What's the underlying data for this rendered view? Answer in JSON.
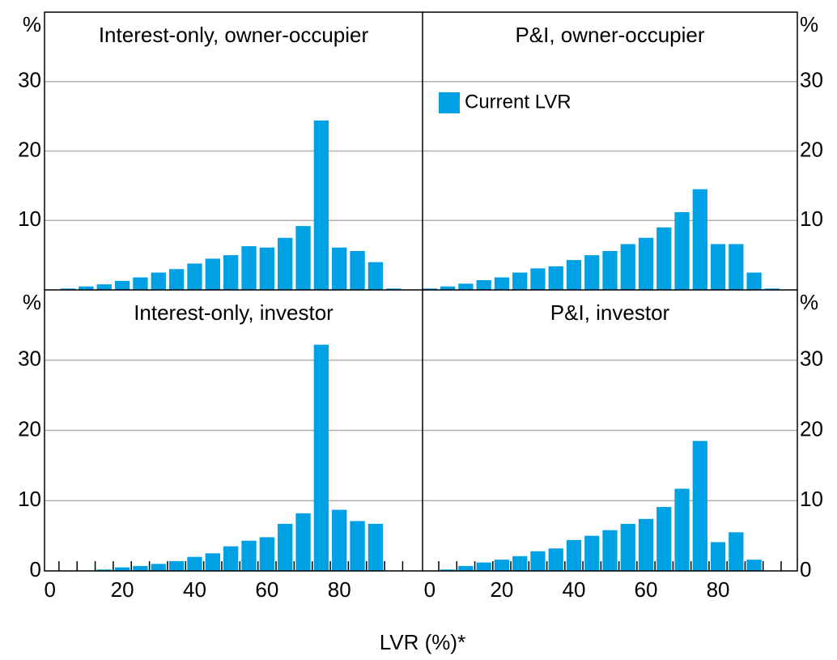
{
  "chart_data": [
    {
      "type": "histogram",
      "title": "Interest-only, owner-occupier",
      "ylabel": "%",
      "yaxis_side": "left",
      "bins": [
        -2.5,
        2.5,
        7.5,
        12.5,
        17.5,
        22.5,
        27.5,
        32.5,
        37.5,
        42.5,
        47.5,
        52.5,
        57.5,
        62.5,
        67.5,
        72.5,
        77.5,
        82.5,
        87.5,
        92.5,
        97.5
      ],
      "values": [
        0,
        0.2,
        0.5,
        0.8,
        1.3,
        1.8,
        2.5,
        3.0,
        3.8,
        4.5,
        5.0,
        6.3,
        6.1,
        7.5,
        9.2,
        24.4,
        6.1,
        5.6,
        4.0,
        0.2
      ],
      "color": "#00a1e4",
      "xlim": [
        -1.5,
        103
      ],
      "ylim": [
        0,
        40
      ],
      "yticks": [
        10,
        20,
        30
      ],
      "grid": true
    },
    {
      "type": "histogram",
      "title": "P&I, owner-occupier",
      "ylabel": "%",
      "yaxis_side": "right",
      "bins": [
        -2.5,
        2.5,
        7.5,
        12.5,
        17.5,
        22.5,
        27.5,
        32.5,
        37.5,
        42.5,
        47.5,
        52.5,
        57.5,
        62.5,
        67.5,
        72.5,
        77.5,
        82.5,
        87.5,
        92.5,
        97.5
      ],
      "series": [
        {
          "name": "Current LVR",
          "color": "#00a1e4",
          "values": [
            0.2,
            0.5,
            0.9,
            1.4,
            1.8,
            2.5,
            3.1,
            3.4,
            4.3,
            5.0,
            5.6,
            6.6,
            7.5,
            9.0,
            11.2,
            14.5,
            6.6,
            6.6,
            2.5,
            0.2
          ]
        }
      ],
      "legend": "upper left",
      "xlim": [
        -2,
        102
      ],
      "ylim": [
        0,
        40
      ],
      "yticks": [
        10,
        20,
        30
      ],
      "grid": true
    },
    {
      "type": "histogram",
      "title": "Interest-only, investor",
      "ylabel": "%",
      "yaxis_side": "left",
      "bins": [
        -2.5,
        2.5,
        7.5,
        12.5,
        17.5,
        22.5,
        27.5,
        32.5,
        37.5,
        42.5,
        47.5,
        52.5,
        57.5,
        62.5,
        67.5,
        72.5,
        77.5,
        82.5,
        87.5,
        92.5,
        97.5
      ],
      "values": [
        0,
        0,
        0,
        0.2,
        0.5,
        0.7,
        1.0,
        1.4,
        2.0,
        2.5,
        3.5,
        4.3,
        4.8,
        6.7,
        8.2,
        32.2,
        8.7,
        7.1,
        6.7,
        0
      ],
      "color": "#00a1e4",
      "xlim": [
        -1.5,
        103
      ],
      "ylim": [
        0,
        40
      ],
      "yticks": [
        0,
        10,
        20,
        30
      ],
      "xticks": [
        0,
        20,
        40,
        60,
        80
      ],
      "bin_ticks": true,
      "grid": true
    },
    {
      "type": "histogram",
      "title": "P&I, investor",
      "ylabel": "%",
      "yaxis_side": "right",
      "bins": [
        -2.5,
        2.5,
        7.5,
        12.5,
        17.5,
        22.5,
        27.5,
        32.5,
        37.5,
        42.5,
        47.5,
        52.5,
        57.5,
        62.5,
        67.5,
        72.5,
        77.5,
        82.5,
        87.5,
        92.5,
        97.5
      ],
      "values": [
        0,
        0.2,
        0.7,
        1.2,
        1.6,
        2.1,
        2.8,
        3.2,
        4.4,
        5.0,
        5.8,
        6.7,
        7.4,
        9.1,
        11.7,
        18.5,
        4.1,
        5.5,
        1.6,
        0
      ],
      "color": "#00a1e4",
      "xlim": [
        -2,
        102
      ],
      "ylim": [
        0,
        40
      ],
      "yticks": [
        0,
        10,
        20,
        30
      ],
      "xticks": [
        0,
        20,
        40,
        60,
        80
      ],
      "bin_ticks": true,
      "grid": true
    }
  ],
  "xlabel": "LVR (%)*"
}
